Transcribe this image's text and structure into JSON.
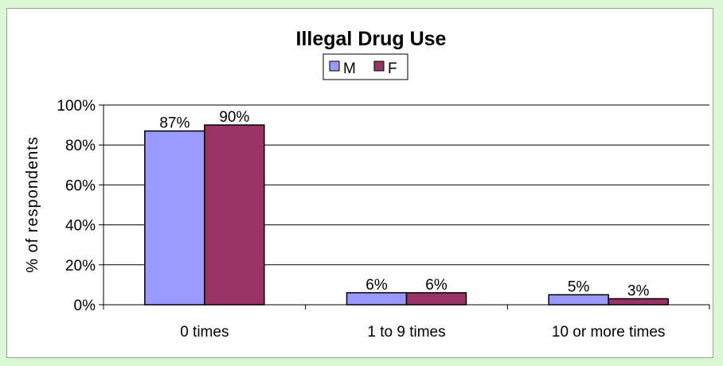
{
  "chart_data": {
    "type": "bar",
    "title": "Illegal Drug Use",
    "xlabel": "",
    "ylabel": "% of respondents",
    "categories": [
      "0 times",
      "1 to 9 times",
      "10 or more times"
    ],
    "series": [
      {
        "name": "M",
        "values": [
          87,
          6,
          5
        ],
        "labels": [
          "87%",
          "6%",
          "5%"
        ],
        "color": "#9999ff"
      },
      {
        "name": "F",
        "values": [
          90,
          6,
          3
        ],
        "labels": [
          "90%",
          "6%",
          "3%"
        ],
        "color": "#993366"
      }
    ],
    "ylim": [
      0,
      100
    ],
    "yticks": [
      0,
      20,
      40,
      60,
      80,
      100
    ],
    "ytick_labels": [
      "0%",
      "20%",
      "40%",
      "60%",
      "80%",
      "100%"
    ],
    "grid": true,
    "legend_position": "top-center"
  }
}
